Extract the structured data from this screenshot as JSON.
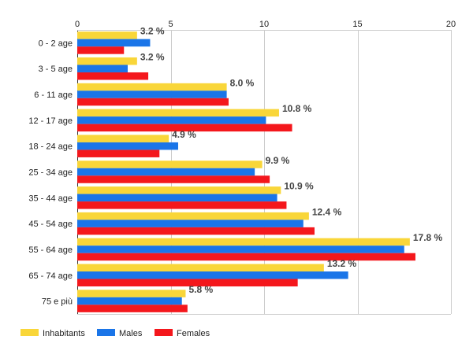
{
  "chart_data": {
    "type": "bar",
    "orientation": "horizontal",
    "categories": [
      "0 - 2 age",
      "3 - 5 age",
      "6 - 11 age",
      "12 - 17 age",
      "18 - 24 age",
      "25 - 34 age",
      "35 - 44 age",
      "45 - 54 age",
      "55 - 64 age",
      "65 - 74 age",
      "75 e più"
    ],
    "series": [
      {
        "name": "Inhabitants",
        "color": "#f9d639",
        "values": [
          3.2,
          3.2,
          8.0,
          10.8,
          4.9,
          9.9,
          10.9,
          12.4,
          17.8,
          13.2,
          5.8
        ]
      },
      {
        "name": "Males",
        "color": "#1a75e8",
        "values": [
          3.9,
          2.7,
          8.0,
          10.1,
          5.4,
          9.5,
          10.7,
          12.1,
          17.5,
          14.5,
          5.6
        ]
      },
      {
        "name": "Females",
        "color": "#f4171c",
        "values": [
          2.5,
          3.8,
          8.1,
          11.5,
          4.4,
          10.3,
          11.2,
          12.7,
          18.1,
          11.8,
          5.9
        ]
      }
    ],
    "data_labels": [
      "3.2 %",
      "3.2 %",
      "8.0 %",
      "10.8 %",
      "4.9 %",
      "9.9 %",
      "10.9 %",
      "12.4 %",
      "17.8 %",
      "13.2 %",
      "5.8 %"
    ],
    "xlim": [
      0,
      20
    ],
    "xticks": [
      "0",
      "5",
      "10",
      "15",
      "20"
    ],
    "xtick_values": [
      0,
      5,
      10,
      15,
      20
    ],
    "grid": true,
    "legend_position": "bottom-left"
  }
}
